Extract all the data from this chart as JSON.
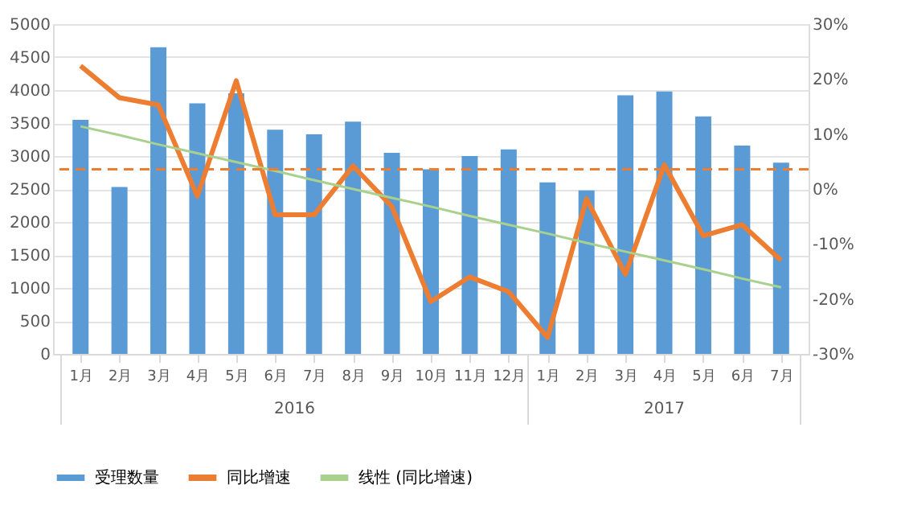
{
  "chart_data": {
    "type": "bar",
    "categories": [
      "1月",
      "2月",
      "3月",
      "4月",
      "5月",
      "6月",
      "7月",
      "8月",
      "9月",
      "10月",
      "11月",
      "12月",
      "1月",
      "2月",
      "3月",
      "4月",
      "5月",
      "6月",
      "7月"
    ],
    "series": [
      {
        "name": "受理数量",
        "color": "#5b9bd5",
        "values": [
          3550,
          2530,
          4650,
          3800,
          3950,
          3400,
          3330,
          3520,
          3050,
          2800,
          3000,
          3100,
          2600,
          2480,
          3920,
          3980,
          3600,
          3160,
          2900
        ]
      },
      {
        "name": "同比增速",
        "type": "line",
        "axis": "y2",
        "color": "#ed7d31",
        "values": [
          22.4,
          16.6,
          15.3,
          -1.3,
          19.7,
          -4.7,
          -4.7,
          4.2,
          -3.2,
          -20.5,
          -16,
          -18.7,
          -27,
          -1.8,
          -15.5,
          4.4,
          -8.5,
          -6.5,
          -13
        ]
      },
      {
        "name": "线性 (同比增速)",
        "type": "line",
        "axis": "y2",
        "color": "#a9d18e",
        "values": [
          11.4,
          9.8,
          8.1,
          6.5,
          4.9,
          3.3,
          1.6,
          0,
          -1.6,
          -3.2,
          -4.9,
          -6.5,
          -8.1,
          -9.8,
          -11.4,
          -13,
          -14.6,
          -16.3,
          -17.9
        ]
      }
    ],
    "ylim": [
      0,
      5000
    ],
    "yticks": [
      0,
      500,
      1000,
      1500,
      2000,
      2500,
      3000,
      3500,
      4000,
      4500,
      5000
    ],
    "y2lim": [
      -30,
      30
    ],
    "y2ticks": [
      {
        "value": -30,
        "label": "-30%"
      },
      {
        "value": -20,
        "label": "-20%"
      },
      {
        "value": -10,
        "label": "-10%"
      },
      {
        "value": 0,
        "label": "0%"
      },
      {
        "value": 10,
        "label": "10%"
      },
      {
        "value": 20,
        "label": "20%"
      },
      {
        "value": 30,
        "label": "30%"
      }
    ],
    "ref_lines": [
      {
        "axis": "y2",
        "value": 3.6,
        "color": "#ed7d31",
        "line_style": "dashed"
      }
    ],
    "annotations": [
      "2016",
      "2017"
    ],
    "grid": "y",
    "legend": "bottom"
  }
}
